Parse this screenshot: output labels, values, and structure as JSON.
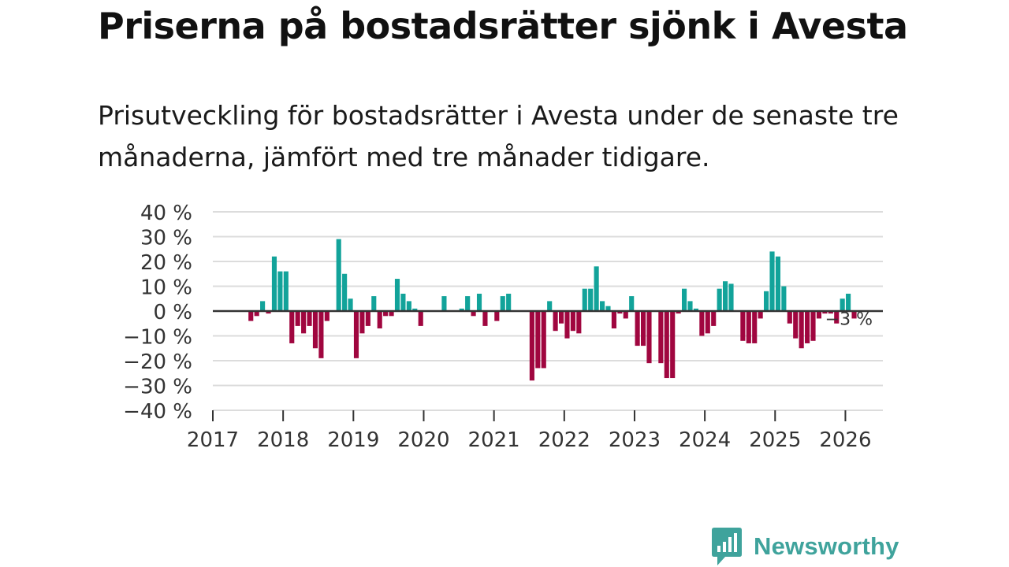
{
  "title": "Priserna på bostadsrätter sjönk i Avesta",
  "subtitle": "Prisutveckling för bostadsrätter i Avesta under de senaste tre månaderna, jämfört med tre månader tidigare.",
  "brand": {
    "name": "Newsworthy",
    "color": "#3fa39c"
  },
  "colors": {
    "positive": "#12a39a",
    "negative": "#a0063f",
    "grid": "#dcdcdc",
    "zero": "#333333"
  },
  "chart_data": {
    "type": "bar",
    "title": "Priserna på bostadsrätter sjönk i Avesta",
    "xlabel": "",
    "ylabel": "",
    "ylim": [
      -40,
      40
    ],
    "y_ticks": [
      40,
      30,
      20,
      10,
      0,
      -10,
      -20,
      -30,
      -40
    ],
    "y_tick_labels": [
      "40 %",
      "30 %",
      "20 %",
      "10 %",
      "0 %",
      "−10 %",
      "−20 %",
      "−30 %",
      "−40 %"
    ],
    "x_ticks": [
      "2017",
      "2018",
      "2019",
      "2020",
      "2021",
      "2022",
      "2023",
      "2024",
      "2025",
      "2026"
    ],
    "start": "2017-01",
    "frequency": "monthly",
    "values": [
      0,
      0,
      0,
      0,
      0,
      0,
      -4,
      -2,
      4,
      -1,
      22,
      16,
      16,
      -13,
      -6,
      -9,
      -6,
      -15,
      -19,
      -4,
      0,
      29,
      15,
      5,
      -19,
      -9,
      -6,
      6,
      -7,
      -2,
      -2,
      13,
      7,
      4,
      1,
      -6,
      0,
      0,
      0,
      6,
      0,
      0,
      1,
      6,
      -2,
      7,
      -6,
      0,
      -4,
      6,
      7,
      0,
      0,
      0,
      -28,
      -23,
      -23,
      4,
      -8,
      -5,
      -11,
      -8,
      -9,
      9,
      9,
      18,
      4,
      2,
      -7,
      -1,
      -3,
      6,
      -14,
      -14,
      -21,
      0,
      -21,
      -27,
      -27,
      -1,
      9,
      4,
      1,
      -10,
      -9,
      -6,
      9,
      12,
      11,
      0,
      -12,
      -13,
      -13,
      -3,
      8,
      24,
      22,
      10,
      -5,
      -11,
      -15,
      -13,
      -12,
      -3,
      -1,
      -1,
      -5,
      5,
      7,
      -3
    ],
    "last_value_label": "−3 %"
  }
}
